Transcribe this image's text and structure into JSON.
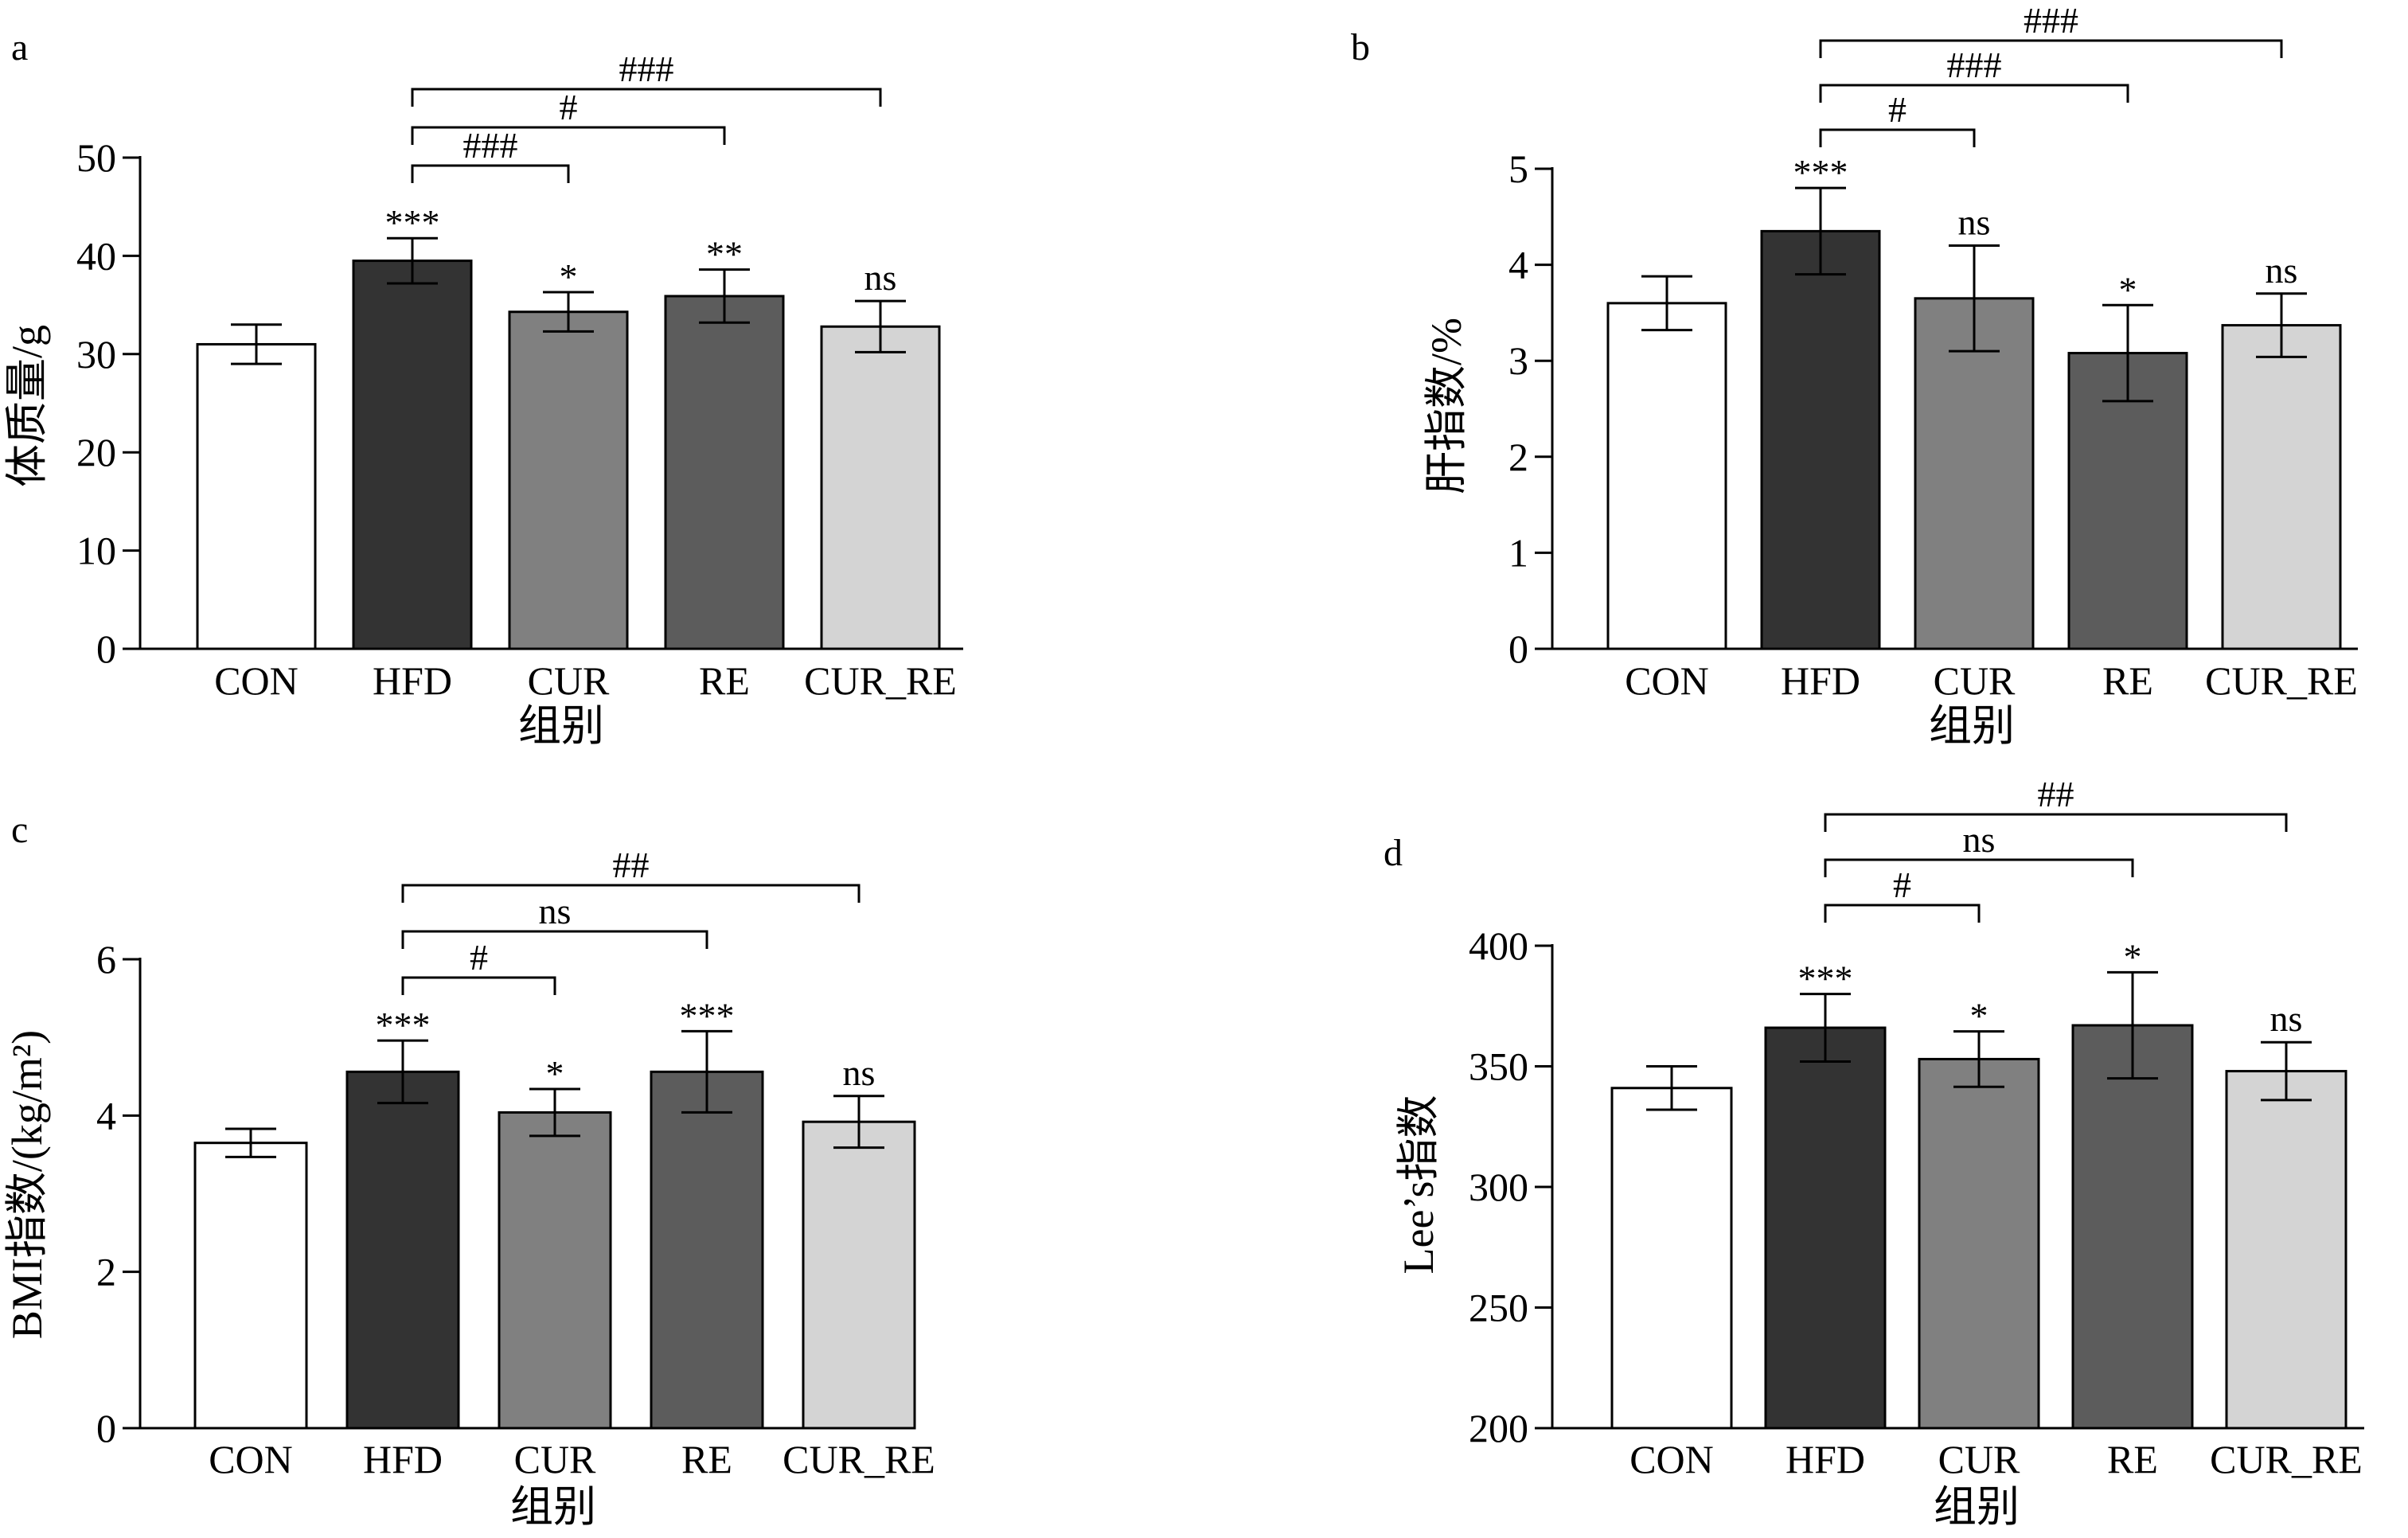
{
  "bar_colors": [
    "#ffffff",
    "#333333",
    "#808080",
    "#5c5c5c",
    "#d4d4d4"
  ],
  "chart_data": [
    {
      "panel": "a",
      "type": "bar",
      "categories": [
        "CON",
        "HFD",
        "CUR",
        "RE",
        "CUR_RE"
      ],
      "values": [
        31.0,
        39.5,
        34.3,
        35.9,
        32.8
      ],
      "errors": [
        2.0,
        2.3,
        2.0,
        2.7,
        2.6
      ],
      "bar_stars": [
        "",
        "***",
        "*",
        "**",
        "ns"
      ],
      "comparisons": [
        {
          "from": "HFD",
          "to": "CUR",
          "label": "###"
        },
        {
          "from": "HFD",
          "to": "RE",
          "label": "#"
        },
        {
          "from": "HFD",
          "to": "CUR_RE",
          "label": "###"
        }
      ],
      "xlabel": "组别",
      "ylabel": "体质量/g",
      "ylim": [
        0,
        50
      ],
      "yticks": [
        "0",
        "10",
        "20",
        "30",
        "40",
        "50"
      ]
    },
    {
      "panel": "b",
      "type": "bar",
      "categories": [
        "CON",
        "HFD",
        "CUR",
        "RE",
        "CUR_RE"
      ],
      "values": [
        3.6,
        4.35,
        3.65,
        3.08,
        3.37
      ],
      "errors": [
        0.28,
        0.45,
        0.55,
        0.5,
        0.33
      ],
      "bar_stars": [
        "",
        "***",
        "ns",
        "*",
        "ns"
      ],
      "comparisons": [
        {
          "from": "HFD",
          "to": "CUR",
          "label": "#"
        },
        {
          "from": "HFD",
          "to": "RE",
          "label": "###"
        },
        {
          "from": "HFD",
          "to": "CUR_RE",
          "label": "###"
        }
      ],
      "xlabel": "组别",
      "ylabel": "肝指数/%",
      "ylim": [
        0,
        5
      ],
      "yticks": [
        "0",
        "1",
        "2",
        "3",
        "4",
        "5"
      ]
    },
    {
      "panel": "c",
      "type": "bar",
      "categories": [
        "CON",
        "HFD",
        "CUR",
        "RE",
        "CUR_RE"
      ],
      "values": [
        3.65,
        4.56,
        4.04,
        4.56,
        3.92
      ],
      "errors": [
        0.18,
        0.4,
        0.3,
        0.52,
        0.33
      ],
      "bar_stars": [
        "",
        "***",
        "*",
        "***",
        "ns"
      ],
      "comparisons": [
        {
          "from": "HFD",
          "to": "CUR",
          "label": "#"
        },
        {
          "from": "HFD",
          "to": "RE",
          "label": "ns"
        },
        {
          "from": "HFD",
          "to": "CUR_RE",
          "label": "##"
        }
      ],
      "xlabel": "组别",
      "ylabel": "BMI指数/(kg/m²)",
      "ylim": [
        0,
        6
      ],
      "yticks": [
        "0",
        "2",
        "4",
        "6"
      ]
    },
    {
      "panel": "d",
      "type": "bar",
      "categories": [
        "CON",
        "HFD",
        "CUR",
        "RE",
        "CUR_RE"
      ],
      "values": [
        341,
        366,
        353,
        367,
        348
      ],
      "errors": [
        9,
        14,
        11.5,
        22,
        12
      ],
      "bar_stars": [
        "",
        "***",
        "*",
        "*",
        "ns"
      ],
      "comparisons": [
        {
          "from": "HFD",
          "to": "CUR",
          "label": "#"
        },
        {
          "from": "HFD",
          "to": "RE",
          "label": "ns"
        },
        {
          "from": "HFD",
          "to": "CUR_RE",
          "label": "##"
        }
      ],
      "xlabel": "组别",
      "ylabel": "Lee’s指数",
      "ylim": [
        200,
        400
      ],
      "yticks": [
        "200",
        "250",
        "300",
        "350",
        "400"
      ]
    }
  ]
}
